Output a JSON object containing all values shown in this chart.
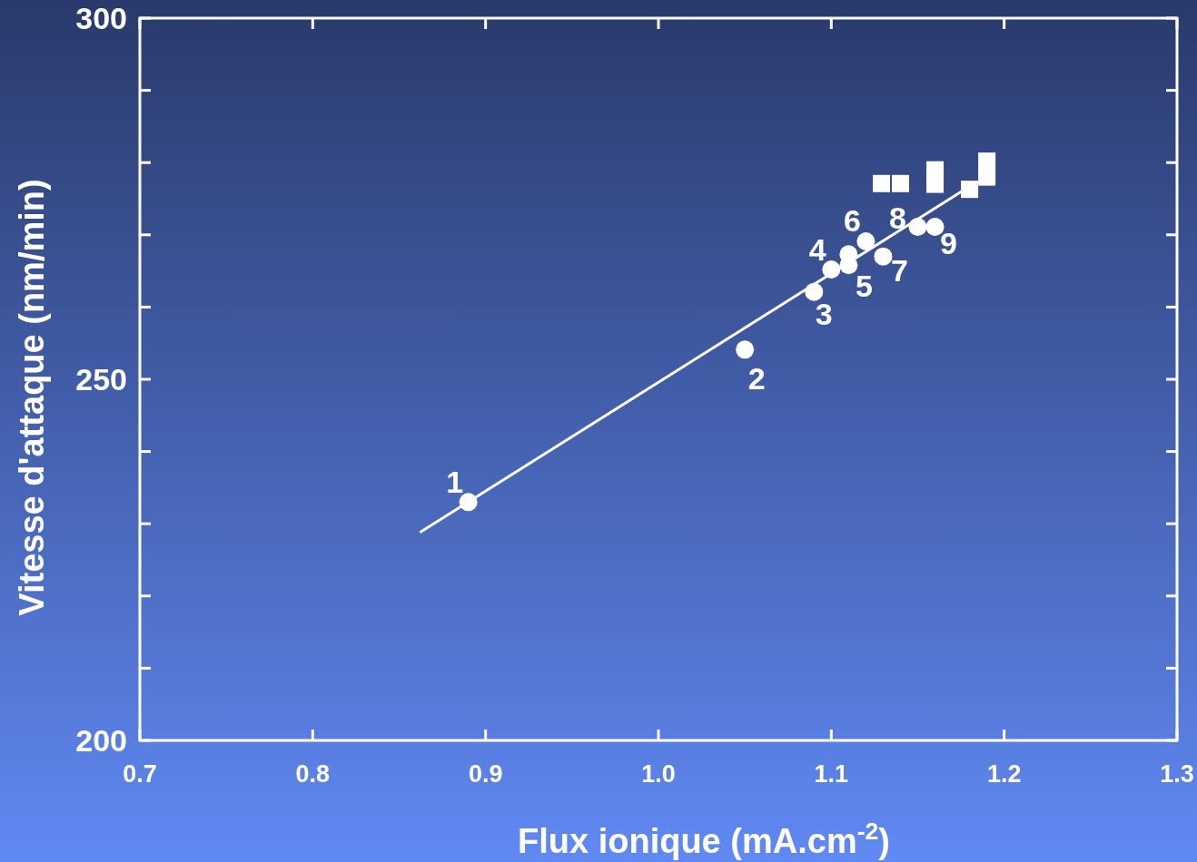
{
  "chart_data": {
    "type": "scatter",
    "xlabel": "Flux ionique (mA.cm$^{-2}$)",
    "ylabel": "Vitesse d'attaque (nm/min)",
    "xlim": [
      0.7,
      1.3
    ],
    "ylim": [
      200,
      300
    ],
    "xticks": [
      0.7,
      0.8,
      0.9,
      {
        "value": 1.0,
        "label": "1.0"
      },
      1.1,
      1.2,
      1.3
    ],
    "yticks": [
      200,
      {
        "value": 210,
        "label": null
      },
      {
        "value": 220,
        "label": null
      },
      {
        "value": 230,
        "label": null
      },
      {
        "value": 240,
        "label": null
      },
      250,
      {
        "value": 260,
        "label": null
      },
      {
        "value": 270,
        "label": null
      },
      {
        "value": 280,
        "label": null
      },
      {
        "value": 290,
        "label": null
      },
      300
    ],
    "grid": false,
    "series": [
      {
        "marker": "circle",
        "color": "#ffffff",
        "x": [
          0.89,
          1.05,
          1.09,
          1.1,
          1.11,
          1.11,
          1.12,
          1.13,
          1.15,
          1.16
        ],
        "values": [
          233.0,
          254.1,
          262.1,
          265.2,
          267.3,
          265.8,
          269.1,
          267.0,
          271.1,
          271.1
        ]
      },
      {
        "marker": "square",
        "color": "#ffffff",
        "x": [
          1.129,
          1.14,
          1.16,
          1.16,
          1.18,
          1.19,
          1.19
        ],
        "values": [
          277.1,
          277.1,
          279.0,
          277.0,
          276.3,
          280.2,
          278.0
        ]
      },
      {
        "type": "line",
        "marker": "none",
        "color": "#ffffff",
        "x": [
          0.862,
          1.176
        ],
        "values": [
          228.8,
          276.1
        ]
      }
    ],
    "annotations": [
      {
        "text": "1",
        "x": 0.89,
        "y": 233.0
      },
      {
        "text": "2",
        "x": 1.05,
        "y": 254.1
      },
      {
        "text": "3",
        "x": 1.09,
        "y": 262.1
      },
      {
        "text": "4",
        "x": 1.1,
        "y": 265.2
      },
      {
        "text": "5",
        "x": 1.11,
        "y": 265.8
      },
      {
        "text": "6",
        "x": 1.12,
        "y": 269.1
      },
      {
        "text": "7",
        "x": 1.13,
        "y": 267.0
      },
      {
        "text": "8",
        "x": 1.15,
        "y": 271.1
      },
      {
        "text": "9",
        "x": 1.16,
        "y": 271.1
      }
    ]
  }
}
